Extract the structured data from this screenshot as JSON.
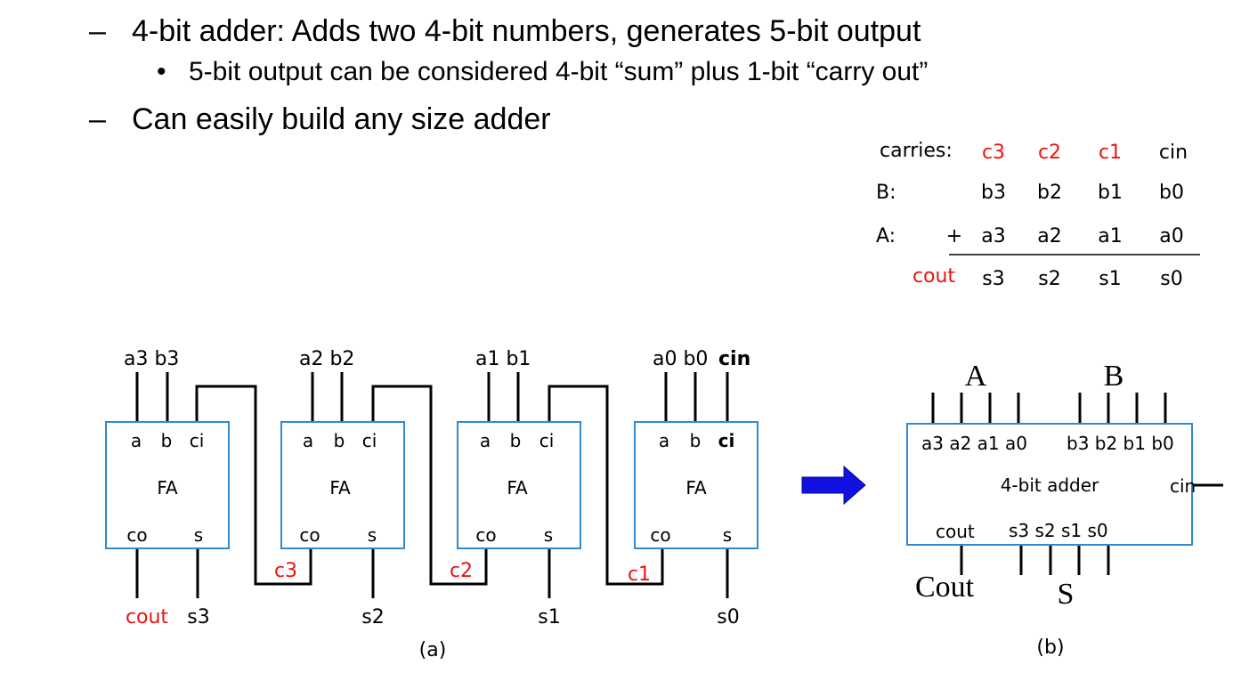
{
  "bullets": {
    "b1": {
      "marker": "–",
      "text": "4-bit adder: Adds two 4-bit numbers, generates 5-bit output"
    },
    "b1_sub": {
      "marker": "•",
      "text": "5-bit output can be considered 4-bit “sum” plus 1-bit “carry out”"
    },
    "b2": {
      "marker": "–",
      "text": "Can easily build any size adder"
    }
  },
  "colors": {
    "red": "#e8150f",
    "box": "#2e8bd0",
    "arrow": "#1010e0",
    "black": "#000000"
  },
  "addition_table": {
    "carries_label": "carries:",
    "carries": [
      "c3",
      "c2",
      "c1",
      "cin"
    ],
    "b_label": "B:",
    "b_bits": [
      "b3",
      "b2",
      "b1",
      "b0"
    ],
    "a_label": "A:",
    "plus": "+",
    "a_bits": [
      "a3",
      "a2",
      "a1",
      "a0"
    ],
    "cout": "cout",
    "s_bits": [
      "s3",
      "s2",
      "s1",
      "s0"
    ]
  },
  "ripple": {
    "stages": [
      {
        "inputs": "a3 b3",
        "out_left": "cout",
        "sum": "s3"
      },
      {
        "inputs": "a2 b2",
        "sum": "s2"
      },
      {
        "inputs": "a1 b1",
        "sum": "s1"
      },
      {
        "inputs": "a0 b0",
        "cin": "cin",
        "sum": "s0"
      }
    ],
    "fa": {
      "a": "a",
      "b": "b",
      "ci": "ci",
      "name": "FA",
      "co": "co",
      "s": "s"
    },
    "carry_labels": [
      "c3",
      "c2",
      "c1"
    ],
    "caption": "(a)"
  },
  "adder_block": {
    "A": "A",
    "B": "B",
    "a_inputs": "a3 a2 a1 a0",
    "b_inputs": "b3 b2 b1 b0",
    "title": "4-bit adder",
    "cin": "cin",
    "cout": "cout",
    "s_outputs": "s3 s2 s1 s0",
    "Cout": "Cout",
    "S": "S",
    "caption": "(b)"
  }
}
